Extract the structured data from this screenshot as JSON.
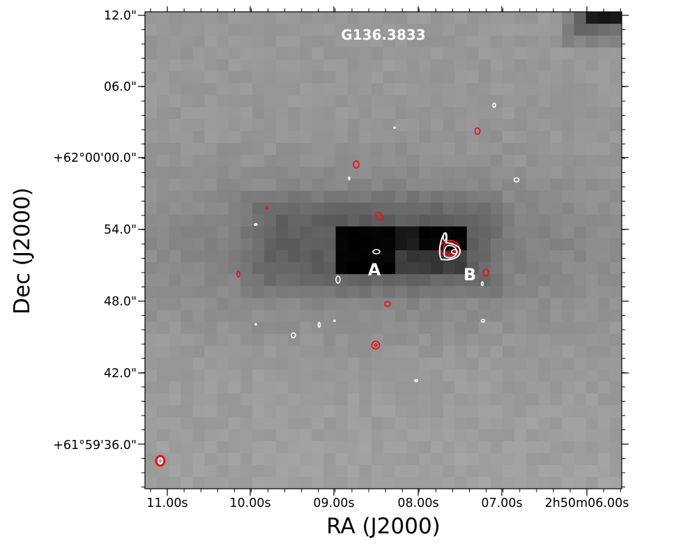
{
  "chart_data": {
    "type": "heatmap",
    "title": "G136.3833",
    "xlabel": "RA (J2000)",
    "ylabel": "Dec (J2000)",
    "x_tick_labels": [
      "11.00s",
      "10.00s",
      "09.00s",
      "08.00s",
      "07.00s",
      "2h50m06.00s"
    ],
    "y_tick_labels": [
      "12.0\"",
      "06.0\"",
      "+62°00'00.0\"",
      "54.0\"",
      "48.0\"",
      "42.0\"",
      "+61°59'36.0\""
    ],
    "x_range_s": [
      11.2,
      5.8
    ],
    "y_range_arcsec_from_62deg": [
      -29.5,
      12.0
    ],
    "colormap": "gray",
    "contours": [
      {
        "name": "white",
        "color": "#ffffff"
      },
      {
        "name": "red",
        "color": "#e8141a"
      }
    ],
    "sources": [
      {
        "label": "A",
        "ra_s": 8.45,
        "dec_arcsec": 51.2
      },
      {
        "label": "B",
        "ra_s": 7.35,
        "dec_arcsec": 50.6
      }
    ],
    "beam": {
      "ra_s": 11.02,
      "dec_arcsec": 33.8,
      "color": "#e8141a"
    }
  }
}
